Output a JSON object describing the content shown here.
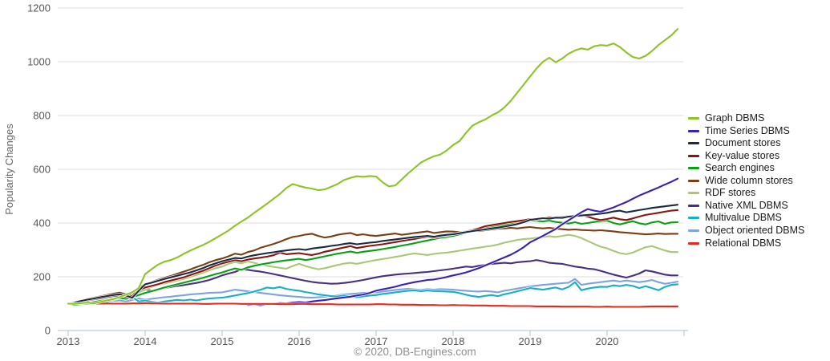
{
  "colors": {
    "background": "#ffffff",
    "gridline": "#dddddd",
    "axis_line": "#a9c2da",
    "tick_label": "#555555",
    "axis_title": "#666666",
    "footer_text": "#8f8f8f",
    "legend_text": "#1a1a1a"
  },
  "chart_data": {
    "type": "line",
    "title": "",
    "ylabel": "Popularity Changes",
    "xlabel": "",
    "footer": "© 2020, DB-Engines.com",
    "x_tick_labels": [
      "2013",
      "2014",
      "2015",
      "2016",
      "2017",
      "2018",
      "2019",
      "2020"
    ],
    "y_ticks": [
      0,
      200,
      400,
      600,
      800,
      1000,
      1200
    ],
    "ylim": [
      0,
      1200
    ],
    "x_start_label": "Jan 2013",
    "x_end_label": "Dec 2020",
    "x_resolution": "monthly",
    "grid": "horizontal-only",
    "legend_position": "right",
    "draw_order": [
      "object-oriented-dbms",
      "multivalue-dbms",
      "native-xml-dbms",
      "rdf-stores",
      "wide-column-stores",
      "search-engines",
      "key-value-stores",
      "document-stores",
      "time-series-dbms",
      "relational-dbms",
      "graph-dbms"
    ],
    "series": [
      {
        "name": "Graph DBMS",
        "slug": "graph-dbms",
        "color": "#8CC426",
        "start_index": 0,
        "values": [
          100,
          99,
          102,
          104,
          101,
          106,
          112,
          117,
          124,
          133,
          142,
          158,
          210,
          228,
          245,
          256,
          262,
          272,
          285,
          297,
          308,
          318,
          330,
          344,
          358,
          372,
          390,
          405,
          420,
          438,
          455,
          472,
          490,
          508,
          530,
          545,
          538,
          532,
          528,
          522,
          525,
          535,
          545,
          560,
          568,
          574,
          572,
          575,
          573,
          552,
          536,
          540,
          562,
          585,
          605,
          625,
          638,
          648,
          655,
          670,
          690,
          705,
          735,
          762,
          775,
          785,
          800,
          812,
          830,
          855,
          885,
          915,
          945,
          975,
          1000,
          1015,
          998,
          1012,
          1030,
          1042,
          1050,
          1045,
          1058,
          1062,
          1060,
          1068,
          1055,
          1035,
          1018,
          1012,
          1022,
          1040,
          1062,
          1080,
          1098,
          1122
        ]
      },
      {
        "name": "Time Series DBMS",
        "slug": "time-series-dbms",
        "color": "#3B1FB5",
        "start_index": 28,
        "values": [
          95,
          97,
          94,
          98,
          100,
          102,
          101,
          104,
          106,
          104,
          108,
          111,
          113,
          117,
          120,
          123,
          126,
          130,
          134,
          140,
          148,
          153,
          158,
          163,
          170,
          175,
          180,
          184,
          188,
          190,
          194,
          199,
          205,
          210,
          216,
          224,
          232,
          242,
          252,
          262,
          272,
          282,
          295,
          310,
          328,
          340,
          352,
          365,
          378,
          395,
          410,
          425,
          440,
          452,
          446,
          442,
          450,
          458,
          468,
          478,
          490,
          502,
          512,
          522,
          532,
          543,
          553,
          565
        ]
      },
      {
        "name": "Document stores",
        "slug": "document-stores",
        "color": "#192A43",
        "start_index": 0,
        "values": [
          100,
          104,
          110,
          115,
          119,
          124,
          128,
          132,
          135,
          130,
          122,
          148,
          172,
          178,
          185,
          192,
          198,
          204,
          210,
          216,
          224,
          232,
          242,
          250,
          258,
          264,
          270,
          268,
          275,
          280,
          284,
          288,
          291,
          295,
          298,
          301,
          303,
          300,
          305,
          308,
          311,
          315,
          318,
          322,
          325,
          321,
          324,
          327,
          329,
          333,
          336,
          339,
          342,
          345,
          348,
          350,
          352,
          349,
          353,
          356,
          358,
          362,
          366,
          370,
          373,
          376,
          380,
          383,
          387,
          391,
          396,
          403,
          412,
          415,
          418,
          416,
          420,
          419,
          424,
          426,
          428,
          430,
          432,
          435,
          438,
          443,
          446,
          440,
          444,
          448,
          452,
          456,
          459,
          462,
          465,
          468
        ]
      },
      {
        "name": "Key-value stores",
        "slug": "key-value-stores",
        "color": "#8A1410",
        "start_index": 0,
        "values": [
          100,
          103,
          107,
          112,
          116,
          120,
          124,
          128,
          131,
          126,
          120,
          150,
          160,
          166,
          172,
          180,
          186,
          192,
          198,
          206,
          214,
          222,
          232,
          242,
          250,
          256,
          262,
          258,
          264,
          268,
          271,
          275,
          280,
          290,
          284,
          286,
          288,
          284,
          281,
          286,
          293,
          298,
          304,
          309,
          314,
          307,
          311,
          315,
          318,
          321,
          325,
          329,
          333,
          337,
          341,
          345,
          349,
          346,
          350,
          354,
          358,
          363,
          368,
          373,
          380,
          388,
          392,
          396,
          400,
          404,
          407,
          410,
          415,
          412,
          418,
          421,
          420,
          422,
          425,
          428,
          430,
          424,
          416,
          411,
          415,
          420,
          414,
          411,
          417,
          424,
          430,
          434,
          438,
          442,
          446,
          448
        ]
      },
      {
        "name": "Search engines",
        "slug": "search-engines",
        "color": "#07A012",
        "start_index": 0,
        "values": [
          100,
          95,
          98,
          102,
          106,
          110,
          114,
          118,
          121,
          118,
          124,
          132,
          140,
          146,
          153,
          160,
          166,
          172,
          178,
          184,
          190,
          196,
          203,
          210,
          216,
          224,
          231,
          226,
          235,
          241,
          246,
          250,
          254,
          258,
          261,
          264,
          267,
          262,
          266,
          271,
          276,
          281,
          286,
          290,
          294,
          289,
          293,
          296,
          299,
          303,
          307,
          311,
          316,
          320,
          325,
          330,
          335,
          340,
          345,
          348,
          352,
          358,
          364,
          371,
          377,
          382,
          386,
          390,
          394,
          397,
          400,
          405,
          410,
          408,
          406,
          409,
          404,
          401,
          398,
          403,
          397,
          400,
          404,
          407,
          409,
          400,
          395,
          401,
          407,
          399,
          395,
          402,
          406,
          397,
          402,
          403
        ]
      },
      {
        "name": "Wide column stores",
        "slug": "wide-column-stores",
        "color": "#7A3E12",
        "start_index": 0,
        "values": [
          100,
          105,
          111,
          117,
          122,
          127,
          132,
          137,
          141,
          135,
          128,
          158,
          172,
          180,
          189,
          196,
          203,
          211,
          219,
          227,
          236,
          244,
          254,
          262,
          268,
          276,
          286,
          282,
          292,
          298,
          308,
          315,
          322,
          330,
          340,
          348,
          352,
          357,
          360,
          352,
          346,
          350,
          356,
          360,
          363,
          355,
          358,
          354,
          352,
          355,
          358,
          361,
          356,
          359,
          363,
          366,
          369,
          363,
          366,
          369,
          368,
          366,
          369,
          372,
          370,
          373,
          376,
          379,
          380,
          382,
          380,
          383,
          385,
          382,
          380,
          382,
          379,
          377,
          375,
          376,
          374,
          373,
          372,
          373,
          371,
          369,
          366,
          364,
          362,
          360,
          358,
          359,
          361,
          359,
          360,
          360
        ]
      },
      {
        "name": "RDF stores",
        "slug": "rdf-stores",
        "color": "#A9C876",
        "start_index": 0,
        "values": [
          100,
          103,
          106,
          110,
          114,
          118,
          121,
          124,
          127,
          122,
          130,
          142,
          152,
          162,
          170,
          175,
          180,
          186,
          192,
          199,
          207,
          215,
          224,
          232,
          238,
          248,
          255,
          250,
          257,
          252,
          246,
          241,
          237,
          233,
          230,
          240,
          248,
          240,
          233,
          228,
          232,
          238,
          244,
          249,
          252,
          248,
          253,
          258,
          262,
          266,
          270,
          274,
          278,
          283,
          287,
          284,
          281,
          285,
          288,
          290,
          293,
          297,
          301,
          305,
          308,
          312,
          315,
          320,
          327,
          332,
          337,
          340,
          342,
          345,
          348,
          351,
          348,
          352,
          356,
          352,
          344,
          333,
          322,
          312,
          306,
          296,
          288,
          284,
          290,
          300,
          310,
          314,
          306,
          298,
          292,
          292
        ]
      },
      {
        "name": "Native XML DBMS",
        "slug": "native-xml-dbms",
        "color": "#48307F",
        "start_index": 0,
        "values": [
          100,
          103,
          106,
          109,
          113,
          117,
          120,
          123,
          126,
          121,
          128,
          147,
          152,
          148,
          154,
          158,
          162,
          166,
          169,
          173,
          177,
          182,
          188,
          196,
          205,
          212,
          218,
          228,
          226,
          222,
          219,
          215,
          210,
          205,
          200,
          195,
          190,
          185,
          181,
          178,
          176,
          174,
          175,
          177,
          180,
          184,
          188,
          193,
          198,
          202,
          205,
          208,
          210,
          212,
          214,
          216,
          218,
          221,
          224,
          227,
          230,
          234,
          238,
          236,
          241,
          244,
          248,
          250,
          252,
          250,
          254,
          256,
          258,
          262,
          258,
          252,
          250,
          248,
          243,
          238,
          235,
          230,
          228,
          222,
          215,
          208,
          202,
          197,
          204,
          212,
          224,
          220,
          214,
          208,
          205,
          205
        ]
      },
      {
        "name": "Multivalue DBMS",
        "slug": "multivalue-dbms",
        "color": "#18AEC6",
        "start_index": 0,
        "values": [
          100,
          102,
          99,
          103,
          100,
          104,
          108,
          114,
          122,
          138,
          124,
          108,
          112,
          107,
          104,
          108,
          111,
          114,
          112,
          115,
          112,
          116,
          119,
          121,
          122,
          126,
          130,
          135,
          139,
          145,
          152,
          160,
          157,
          162,
          155,
          151,
          148,
          143,
          139,
          134,
          131,
          128,
          127,
          130,
          126,
          124,
          127,
          130,
          132,
          136,
          139,
          142,
          145,
          148,
          150,
          146,
          149,
          147,
          146,
          145,
          144,
          139,
          133,
          128,
          125,
          129,
          132,
          128,
          135,
          140,
          146,
          152,
          158,
          155,
          152,
          156,
          160,
          153,
          162,
          180,
          150,
          156,
          160,
          163,
          162,
          168,
          165,
          170,
          166,
          158,
          165,
          158,
          150,
          162,
          170,
          172
        ]
      },
      {
        "name": "Object oriented DBMS",
        "slug": "object-oriented-dbms",
        "color": "#7FA2E0",
        "start_index": 0,
        "values": [
          100,
          103,
          106,
          104,
          107,
          105,
          108,
          110,
          112,
          108,
          114,
          119,
          115,
          118,
          121,
          124,
          126,
          129,
          131,
          134,
          136,
          138,
          140,
          141,
          142,
          147,
          152,
          149,
          146,
          143,
          140,
          137,
          134,
          131,
          129,
          127,
          125,
          123,
          122,
          124,
          126,
          129,
          131,
          134,
          136,
          138,
          140,
          141,
          142,
          145,
          148,
          151,
          153,
          155,
          153,
          151,
          154,
          152,
          154,
          153,
          152,
          150,
          148,
          146,
          145,
          147,
          145,
          142,
          148,
          152,
          156,
          160,
          164,
          167,
          170,
          172,
          174,
          176,
          178,
          192,
          170,
          174,
          177,
          180,
          183,
          186,
          182,
          186,
          183,
          180,
          183,
          188,
          180,
          174,
          177,
          182
        ]
      },
      {
        "name": "Relational DBMS",
        "slug": "relational-dbms",
        "color": "#E42A1C",
        "start_index": 0,
        "values": [
          100,
          100,
          100,
          101,
          100,
          100,
          101,
          100,
          100,
          100,
          101,
          101,
          102,
          101,
          101,
          100,
          100,
          100,
          100,
          100,
          100,
          99,
          99,
          100,
          100,
          100,
          100,
          99,
          99,
          99,
          99,
          99,
          99,
          98,
          98,
          98,
          99,
          99,
          98,
          98,
          98,
          98,
          97,
          97,
          97,
          97,
          97,
          97,
          98,
          98,
          97,
          97,
          96,
          96,
          96,
          95,
          95,
          95,
          94,
          94,
          95,
          94,
          94,
          93,
          93,
          93,
          92,
          92,
          92,
          91,
          91,
          91,
          91,
          90,
          90,
          90,
          90,
          89,
          89,
          89,
          89,
          89,
          88,
          88,
          89,
          88,
          88,
          88,
          88,
          88,
          89,
          90,
          90,
          90,
          90,
          90
        ]
      }
    ]
  }
}
